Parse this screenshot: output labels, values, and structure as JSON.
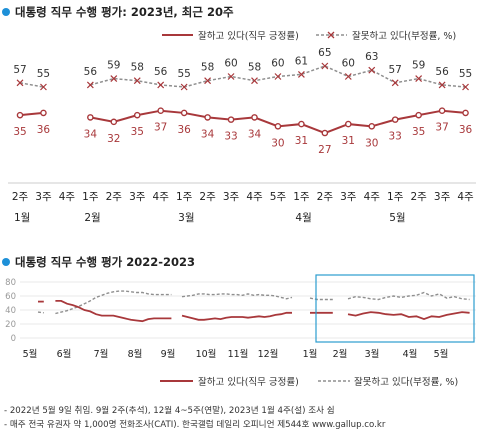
{
  "chart_data": [
    {
      "type": "line",
      "title": "대통령 직무 수행 평가: 2023년, 최근 20주",
      "legend": {
        "position": "top-right",
        "approve": "잘하고 있다(직무 긍정률)",
        "disapprove": "잘못하고 있다(부정률, %)"
      },
      "x": [
        "2주",
        "3주",
        "4주",
        "1주",
        "2주",
        "3주",
        "4주",
        "1주",
        "2주",
        "3주",
        "4주",
        "5주",
        "1주",
        "2주",
        "3주",
        "4주",
        "1주",
        "2주",
        "3주",
        "4주"
      ],
      "months": [
        {
          "label": "1월",
          "start_index": 0
        },
        {
          "label": "2월",
          "start_index": 3
        },
        {
          "label": "3월",
          "start_index": 7
        },
        {
          "label": "4월",
          "start_index": 12
        },
        {
          "label": "5월",
          "start_index": 16
        }
      ],
      "gaps_after_index": [
        2
      ],
      "series": [
        {
          "name": "잘하고 있다(직무 긍정률)",
          "values": [
            35,
            36,
            null,
            34,
            32,
            35,
            37,
            36,
            34,
            33,
            34,
            30,
            31,
            27,
            31,
            30,
            33,
            35,
            37,
            36
          ],
          "color": "#a8383b"
        },
        {
          "name": "잘못하고 있다(부정률, %)",
          "values": [
            57,
            55,
            null,
            56,
            59,
            58,
            56,
            55,
            58,
            60,
            58,
            60,
            61,
            65,
            60,
            63,
            57,
            59,
            56,
            55
          ],
          "color": "#8f8f8f"
        }
      ]
    },
    {
      "type": "line",
      "title": "대통령 직무 수행 평가 2022-2023",
      "yticks": [
        0,
        20,
        40,
        60,
        80
      ],
      "ylim": [
        0,
        80
      ],
      "xlabels": [
        "5월",
        "6월",
        "7월",
        "8월",
        "9월",
        "10월",
        "11월",
        "12월",
        "1월",
        "2월",
        "3월",
        "4월",
        "5월"
      ],
      "legend": {
        "position": "bottom-right",
        "approve": "잘하고 있다(직무 긍정률)",
        "disapprove": "잘못하고 있다(부정률, %)"
      },
      "highlight_start_index": 8,
      "segments": [
        {
          "approve": [
            52,
            52,
            null,
            53,
            53,
            49,
            47,
            44,
            40,
            38,
            34,
            32,
            32,
            32,
            30,
            28,
            26,
            25,
            24,
            27,
            28,
            28,
            28,
            28
          ],
          "disapprove": [
            37,
            36,
            null,
            35,
            37,
            39,
            42,
            45,
            49,
            53,
            58,
            61,
            64,
            66,
            67,
            67,
            66,
            65,
            65,
            63,
            62,
            62,
            62,
            62
          ]
        },
        {
          "approve": [
            32,
            30,
            28,
            26,
            26,
            27,
            28,
            27,
            29,
            30,
            30,
            30,
            29,
            30,
            31,
            30,
            31,
            33,
            34,
            36,
            36
          ],
          "disapprove": [
            59,
            60,
            61,
            63,
            63,
            62,
            62,
            63,
            63,
            62,
            62,
            61,
            63,
            61,
            62,
            61,
            61,
            60,
            58,
            56,
            58
          ]
        },
        {
          "approve": [
            36,
            36,
            36,
            36,
            null,
            34,
            32,
            35,
            37,
            36,
            34,
            33,
            34,
            30,
            31,
            27,
            31,
            30,
            33,
            35,
            37,
            36
          ],
          "disapprove": [
            57,
            55,
            55,
            55,
            null,
            56,
            59,
            58,
            56,
            55,
            58,
            60,
            58,
            60,
            61,
            65,
            60,
            63,
            57,
            59,
            56,
            55
          ]
        }
      ]
    }
  ],
  "notes": {
    "line1": "- 2022년 5월 9일 취임. 9월 2주(추석), 12월 4~5주(연말), 2023년 1월 4주(설) 조사 쉼",
    "line2": "- 매주 전국 유권자 약 1,000명 전화조사(CATI). 한국갤럽 데일리 오피니언 제544호 www.gallup.co.kr"
  },
  "colors": {
    "approve": "#a8383b",
    "disapprove": "#8f8f8f",
    "accent": "#1e90d8",
    "highlight": "#2b9ccf"
  }
}
